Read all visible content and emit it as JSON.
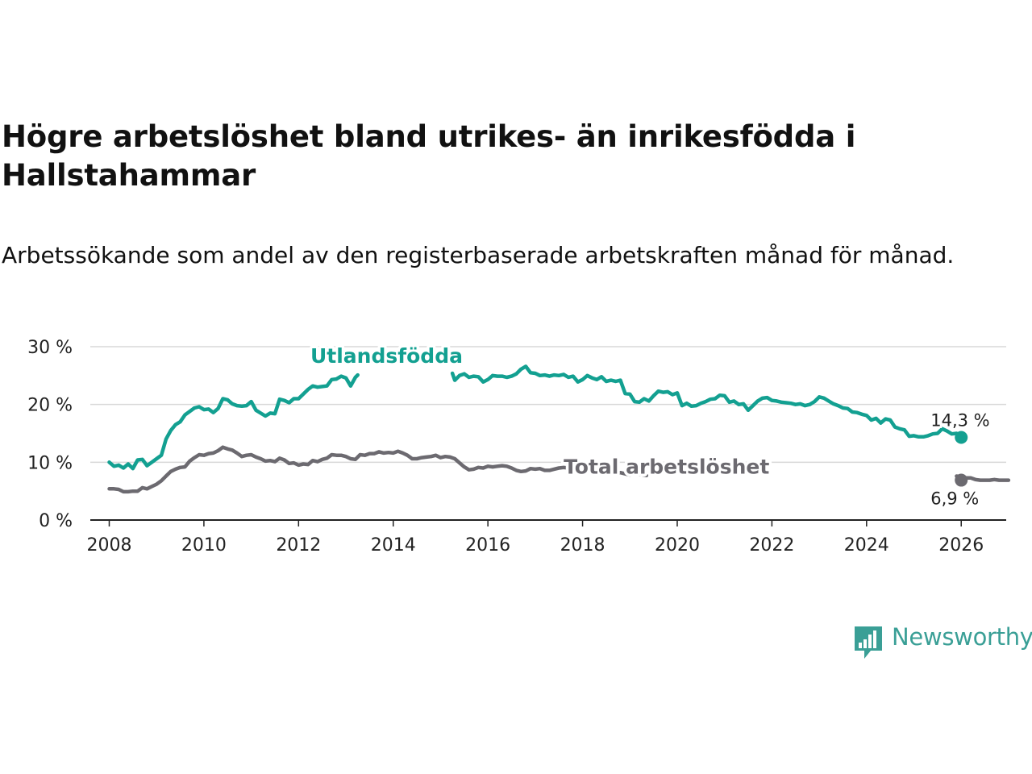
{
  "title": "Högre arbetslöshet bland utrikes- än inrikesfödda i Hallstahammar",
  "subtitle": "Arbetssökande som andel av den registerbaserade arbetskraften månad för månad.",
  "brand": {
    "name": "Newsworthy",
    "color": "#3a9f96"
  },
  "colors": {
    "utlandsfodda": "#13a091",
    "total": "#6c6a70",
    "grid": "#d8d8d8",
    "axis": "#222222"
  },
  "chart_data": {
    "type": "line",
    "title": "Högre arbetslöshet bland utrikes- än inrikesfödda i Hallstahammar",
    "xlabel": "",
    "ylabel": "",
    "xlim": [
      2007.6,
      2026.95
    ],
    "ylim": [
      0,
      30
    ],
    "x_ticks": [
      2008,
      2010,
      2012,
      2014,
      2016,
      2018,
      2020,
      2022,
      2024,
      2026
    ],
    "x_tick_labels": [
      "2008",
      "2010",
      "2012",
      "2014",
      "2016",
      "2018",
      "2020",
      "2022",
      "2024",
      "2026"
    ],
    "y_ticks": [
      0,
      10,
      20,
      30
    ],
    "y_tick_labels": [
      "0 %",
      "10 %",
      "20 %",
      "30 %"
    ],
    "grid": true,
    "series": [
      {
        "name": "Utlandsfödda",
        "color": "#13a091",
        "end_label": "14,3 %",
        "points": [
          [
            2008.0,
            10.0
          ],
          [
            2008.1,
            9.3
          ],
          [
            2008.2,
            9.5
          ],
          [
            2008.3,
            9.0
          ],
          [
            2008.4,
            9.7
          ],
          [
            2008.5,
            8.9
          ],
          [
            2008.6,
            10.4
          ],
          [
            2008.7,
            10.5
          ],
          [
            2008.8,
            9.4
          ],
          [
            2008.9,
            10.0
          ],
          [
            2009.0,
            10.6
          ],
          [
            2009.1,
            11.2
          ],
          [
            2009.2,
            14.0
          ],
          [
            2009.3,
            15.5
          ],
          [
            2009.4,
            16.5
          ],
          [
            2009.5,
            17.0
          ],
          [
            2009.6,
            18.2
          ],
          [
            2009.7,
            18.8
          ],
          [
            2009.8,
            19.4
          ],
          [
            2009.9,
            19.6
          ],
          [
            2010.0,
            19.1
          ],
          [
            2010.1,
            19.2
          ],
          [
            2010.2,
            18.6
          ],
          [
            2010.3,
            19.3
          ],
          [
            2010.4,
            21.0
          ],
          [
            2010.5,
            20.8
          ],
          [
            2010.6,
            20.1
          ],
          [
            2010.7,
            19.8
          ],
          [
            2010.8,
            19.7
          ],
          [
            2010.9,
            19.8
          ],
          [
            2011.0,
            20.5
          ],
          [
            2011.1,
            19.0
          ],
          [
            2011.2,
            18.5
          ],
          [
            2011.3,
            18.0
          ],
          [
            2011.4,
            18.5
          ],
          [
            2011.5,
            18.4
          ],
          [
            2011.6,
            20.9
          ],
          [
            2011.7,
            20.7
          ],
          [
            2011.8,
            20.3
          ],
          [
            2011.9,
            21.0
          ],
          [
            2012.0,
            21.0
          ],
          [
            2012.1,
            21.8
          ],
          [
            2012.2,
            22.6
          ],
          [
            2012.3,
            23.2
          ],
          [
            2012.4,
            23.0
          ],
          [
            2012.5,
            23.1
          ],
          [
            2012.6,
            23.2
          ],
          [
            2012.7,
            24.3
          ],
          [
            2012.8,
            24.4
          ],
          [
            2012.9,
            24.9
          ],
          [
            2013.0,
            24.6
          ],
          [
            2013.1,
            23.2
          ],
          [
            2013.2,
            24.7
          ],
          [
            2013.25,
            25.1
          ],
          [
            2015.25,
            25.4
          ],
          [
            2015.3,
            24.2
          ],
          [
            2015.4,
            25.0
          ],
          [
            2015.5,
            25.3
          ],
          [
            2015.6,
            24.7
          ],
          [
            2015.7,
            24.9
          ],
          [
            2015.8,
            24.8
          ],
          [
            2015.9,
            23.9
          ],
          [
            2016.0,
            24.3
          ],
          [
            2016.1,
            25.0
          ],
          [
            2016.2,
            24.9
          ],
          [
            2016.3,
            24.9
          ],
          [
            2016.4,
            24.7
          ],
          [
            2016.5,
            24.9
          ],
          [
            2016.6,
            25.3
          ],
          [
            2016.7,
            26.1
          ],
          [
            2016.8,
            26.6
          ],
          [
            2016.9,
            25.5
          ],
          [
            2017.0,
            25.4
          ],
          [
            2017.1,
            25.0
          ],
          [
            2017.2,
            25.1
          ],
          [
            2017.3,
            24.9
          ],
          [
            2017.4,
            25.1
          ],
          [
            2017.5,
            25.0
          ],
          [
            2017.6,
            25.2
          ],
          [
            2017.7,
            24.7
          ],
          [
            2017.8,
            24.9
          ],
          [
            2017.9,
            23.9
          ],
          [
            2018.0,
            24.3
          ],
          [
            2018.1,
            25.0
          ],
          [
            2018.2,
            24.6
          ],
          [
            2018.3,
            24.3
          ],
          [
            2018.4,
            24.8
          ],
          [
            2018.5,
            24.0
          ],
          [
            2018.6,
            24.2
          ],
          [
            2018.7,
            24.0
          ],
          [
            2018.8,
            24.2
          ],
          [
            2018.9,
            21.9
          ],
          [
            2019.0,
            21.8
          ],
          [
            2019.1,
            20.5
          ],
          [
            2019.2,
            20.4
          ],
          [
            2019.3,
            21.0
          ],
          [
            2019.4,
            20.6
          ],
          [
            2019.5,
            21.5
          ],
          [
            2019.6,
            22.3
          ],
          [
            2019.7,
            22.1
          ],
          [
            2019.8,
            22.2
          ],
          [
            2019.9,
            21.7
          ],
          [
            2020.0,
            22.0
          ],
          [
            2020.1,
            19.8
          ],
          [
            2020.2,
            20.2
          ],
          [
            2020.3,
            19.7
          ],
          [
            2020.4,
            19.8
          ],
          [
            2020.5,
            20.2
          ],
          [
            2020.6,
            20.5
          ],
          [
            2020.7,
            20.9
          ],
          [
            2020.8,
            21.0
          ],
          [
            2020.9,
            21.6
          ],
          [
            2021.0,
            21.5
          ],
          [
            2021.1,
            20.4
          ],
          [
            2021.2,
            20.6
          ],
          [
            2021.3,
            20.0
          ],
          [
            2021.4,
            20.1
          ],
          [
            2021.5,
            19.0
          ],
          [
            2021.6,
            19.8
          ],
          [
            2021.7,
            20.6
          ],
          [
            2021.8,
            21.1
          ],
          [
            2021.9,
            21.2
          ],
          [
            2022.0,
            20.7
          ],
          [
            2022.1,
            20.6
          ],
          [
            2022.2,
            20.4
          ],
          [
            2022.3,
            20.3
          ],
          [
            2022.4,
            20.2
          ],
          [
            2022.5,
            20.0
          ],
          [
            2022.6,
            20.1
          ],
          [
            2022.7,
            19.8
          ],
          [
            2022.8,
            20.0
          ],
          [
            2022.9,
            20.5
          ],
          [
            2023.0,
            21.3
          ],
          [
            2023.1,
            21.1
          ],
          [
            2023.2,
            20.6
          ],
          [
            2023.3,
            20.1
          ],
          [
            2023.4,
            19.8
          ],
          [
            2023.5,
            19.4
          ],
          [
            2023.6,
            19.3
          ],
          [
            2023.7,
            18.7
          ],
          [
            2023.8,
            18.6
          ],
          [
            2023.9,
            18.3
          ],
          [
            2024.0,
            18.1
          ],
          [
            2024.1,
            17.3
          ],
          [
            2024.2,
            17.6
          ],
          [
            2024.3,
            16.8
          ],
          [
            2024.4,
            17.5
          ],
          [
            2024.5,
            17.3
          ],
          [
            2024.6,
            16.1
          ],
          [
            2024.7,
            15.8
          ],
          [
            2024.8,
            15.6
          ],
          [
            2024.9,
            14.5
          ],
          [
            2025.0,
            14.6
          ],
          [
            2025.1,
            14.4
          ],
          [
            2025.2,
            14.4
          ],
          [
            2025.3,
            14.6
          ],
          [
            2025.4,
            14.9
          ],
          [
            2025.5,
            15.0
          ],
          [
            2025.6,
            15.8
          ],
          [
            2025.7,
            15.4
          ],
          [
            2025.8,
            14.9
          ],
          [
            2025.9,
            15.0
          ],
          [
            2026.0,
            14.3
          ]
        ]
      },
      {
        "name": "Total arbetslöshet",
        "color": "#6c6a70",
        "end_label": "6,9 %",
        "points": [
          [
            2008.0,
            5.4
          ],
          [
            2008.1,
            5.4
          ],
          [
            2008.2,
            5.3
          ],
          [
            2008.3,
            4.9
          ],
          [
            2008.4,
            4.9
          ],
          [
            2008.5,
            5.0
          ],
          [
            2008.6,
            5.0
          ],
          [
            2008.7,
            5.6
          ],
          [
            2008.8,
            5.4
          ],
          [
            2008.9,
            5.8
          ],
          [
            2009.0,
            6.2
          ],
          [
            2009.1,
            6.8
          ],
          [
            2009.2,
            7.6
          ],
          [
            2009.3,
            8.4
          ],
          [
            2009.4,
            8.8
          ],
          [
            2009.5,
            9.1
          ],
          [
            2009.6,
            9.2
          ],
          [
            2009.7,
            10.2
          ],
          [
            2009.8,
            10.8
          ],
          [
            2009.9,
            11.3
          ],
          [
            2010.0,
            11.2
          ],
          [
            2010.1,
            11.5
          ],
          [
            2010.2,
            11.6
          ],
          [
            2010.3,
            12.0
          ],
          [
            2010.4,
            12.6
          ],
          [
            2010.5,
            12.3
          ],
          [
            2010.6,
            12.1
          ],
          [
            2010.7,
            11.6
          ],
          [
            2010.8,
            11.0
          ],
          [
            2010.9,
            11.2
          ],
          [
            2011.0,
            11.3
          ],
          [
            2011.1,
            10.9
          ],
          [
            2011.2,
            10.6
          ],
          [
            2011.3,
            10.2
          ],
          [
            2011.4,
            10.3
          ],
          [
            2011.5,
            10.1
          ],
          [
            2011.6,
            10.7
          ],
          [
            2011.7,
            10.4
          ],
          [
            2011.8,
            9.8
          ],
          [
            2011.9,
            9.9
          ],
          [
            2012.0,
            9.5
          ],
          [
            2012.1,
            9.7
          ],
          [
            2012.2,
            9.6
          ],
          [
            2012.3,
            10.3
          ],
          [
            2012.4,
            10.1
          ],
          [
            2012.5,
            10.5
          ],
          [
            2012.6,
            10.7
          ],
          [
            2012.7,
            11.3
          ],
          [
            2012.8,
            11.2
          ],
          [
            2012.9,
            11.2
          ],
          [
            2013.0,
            11.0
          ],
          [
            2013.1,
            10.6
          ],
          [
            2013.2,
            10.5
          ],
          [
            2013.3,
            11.3
          ],
          [
            2013.4,
            11.2
          ],
          [
            2013.5,
            11.5
          ],
          [
            2013.6,
            11.5
          ],
          [
            2013.7,
            11.8
          ],
          [
            2013.8,
            11.6
          ],
          [
            2013.9,
            11.7
          ],
          [
            2014.0,
            11.6
          ],
          [
            2014.1,
            11.9
          ],
          [
            2014.2,
            11.6
          ],
          [
            2014.3,
            11.2
          ],
          [
            2014.4,
            10.6
          ],
          [
            2014.5,
            10.6
          ],
          [
            2014.6,
            10.8
          ],
          [
            2014.7,
            10.9
          ],
          [
            2014.8,
            11.0
          ],
          [
            2014.9,
            11.2
          ],
          [
            2015.0,
            10.8
          ],
          [
            2015.1,
            11.0
          ],
          [
            2015.2,
            10.9
          ],
          [
            2015.3,
            10.6
          ],
          [
            2015.4,
            9.9
          ],
          [
            2015.5,
            9.2
          ],
          [
            2015.6,
            8.7
          ],
          [
            2015.7,
            8.8
          ],
          [
            2015.8,
            9.1
          ],
          [
            2015.9,
            9.0
          ],
          [
            2016.0,
            9.3
          ],
          [
            2016.1,
            9.2
          ],
          [
            2016.2,
            9.3
          ],
          [
            2016.3,
            9.4
          ],
          [
            2016.4,
            9.3
          ],
          [
            2016.5,
            9.0
          ],
          [
            2016.6,
            8.6
          ],
          [
            2016.7,
            8.4
          ],
          [
            2016.8,
            8.5
          ],
          [
            2016.9,
            8.9
          ],
          [
            2017.0,
            8.8
          ],
          [
            2017.1,
            8.9
          ],
          [
            2017.2,
            8.6
          ],
          [
            2017.3,
            8.6
          ],
          [
            2017.4,
            8.8
          ],
          [
            2017.5,
            9.0
          ],
          [
            2017.6,
            9.1
          ],
          [
            2017.7,
            9.0
          ],
          [
            2017.8,
            8.6
          ],
          [
            2017.9,
            8.3
          ],
          [
            2018.0,
            8.2
          ],
          [
            2018.1,
            8.4
          ],
          [
            2018.2,
            8.4
          ],
          [
            2018.3,
            8.3
          ],
          [
            2018.4,
            8.4
          ],
          [
            2018.5,
            8.2
          ],
          [
            2018.6,
            8.4
          ],
          [
            2018.7,
            8.1
          ],
          [
            2018.8,
            8.2
          ],
          [
            2018.9,
            8.0
          ],
          [
            2019.0,
            7.8
          ],
          [
            2019.1,
            8.0
          ],
          [
            2019.2,
            7.9
          ],
          [
            2019.3,
            7.8
          ],
          [
            2019.35,
            7.7
          ],
          [
            2025.9,
            7.6
          ],
          [
            2026.0,
            7.5
          ],
          [
            2026.1,
            7.3
          ],
          [
            2026.2,
            7.3
          ],
          [
            2026.3,
            7.0
          ],
          [
            2026.4,
            6.9
          ],
          [
            2026.5,
            6.9
          ],
          [
            2026.6,
            6.9
          ],
          [
            2026.7,
            7.0
          ],
          [
            2026.8,
            6.9
          ],
          [
            2026.9,
            6.9
          ],
          [
            2027.0,
            6.9
          ]
        ]
      }
    ],
    "annotations": [
      {
        "text": "Utlandsfödda",
        "series": "Utlandsfödda"
      },
      {
        "text": "Total arbetslöshet",
        "series": "Total arbetslöshet"
      }
    ]
  }
}
